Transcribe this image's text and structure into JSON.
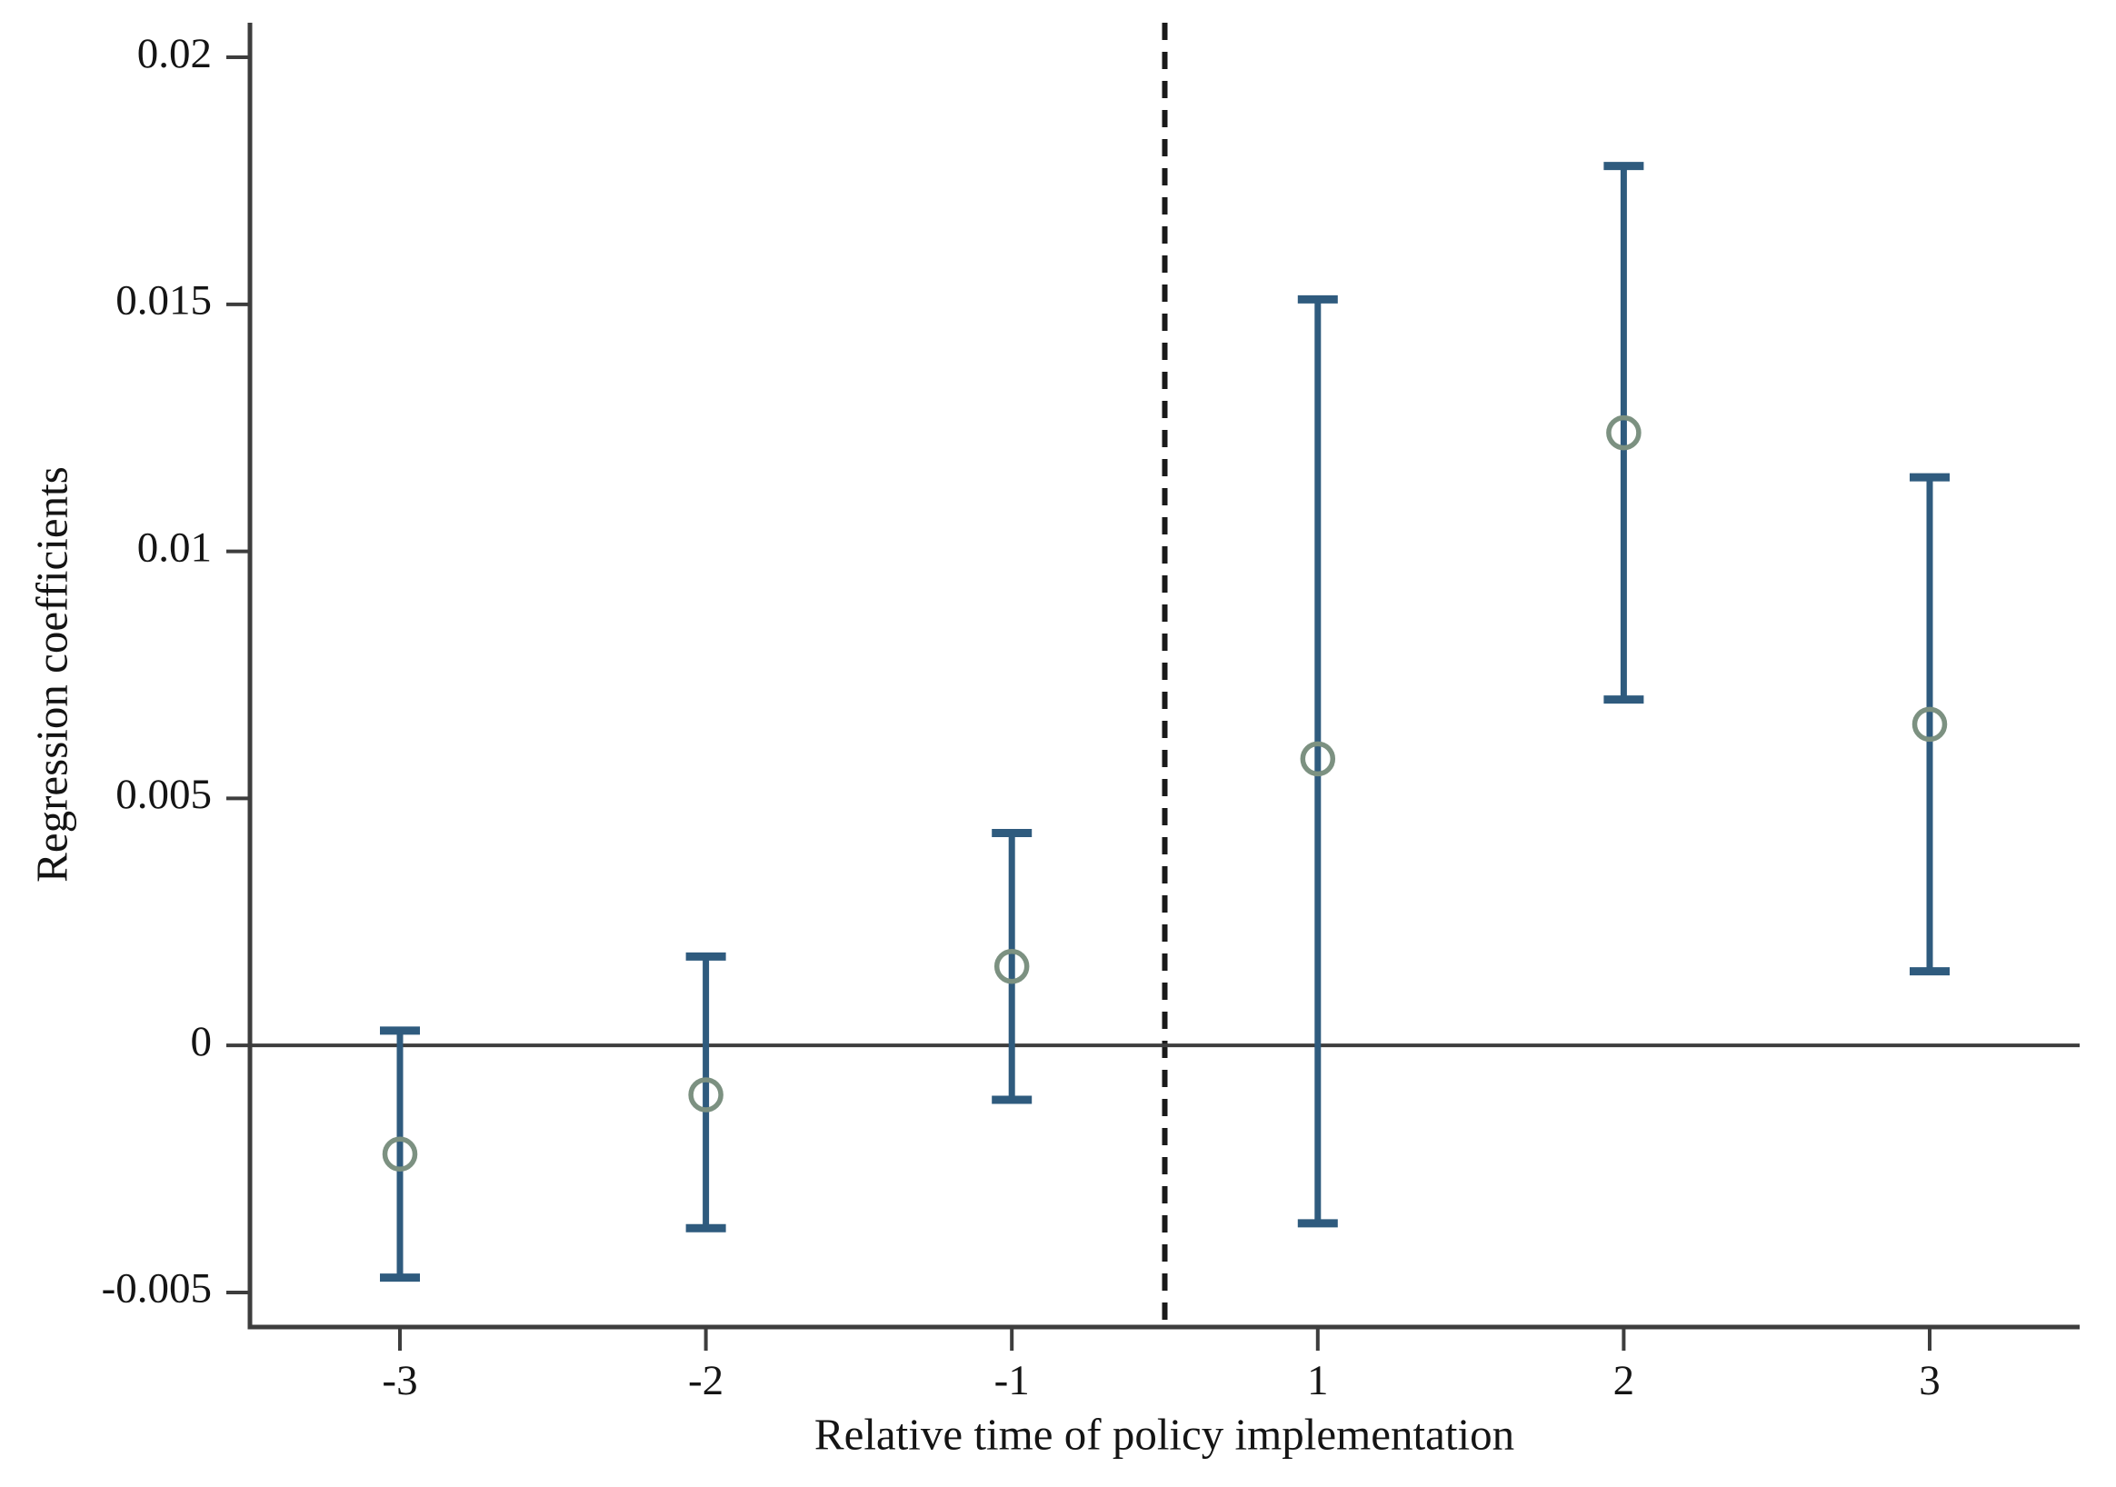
{
  "chart_data": {
    "type": "scatter",
    "subtype": "coefficient-plot-with-error-bars",
    "title": "",
    "xlabel": "Relative time of policy implementation",
    "ylabel": "Regression coefficients",
    "x_tick_labels": [
      "-3",
      "-2",
      "-1",
      "1",
      "2",
      "3"
    ],
    "y_tick_labels": [
      "0.02",
      "0.015",
      "0.01",
      "0.005",
      "0",
      "-0.005"
    ],
    "y_tick_values": [
      0.02,
      0.015,
      0.01,
      0.005,
      0,
      -0.005
    ],
    "ylim": [
      -0.0057,
      0.0207
    ],
    "categories": [
      -3,
      -2,
      -1,
      1,
      2,
      3
    ],
    "series": [
      {
        "name": "Regression coefficients",
        "points": [
          {
            "x": -3,
            "coef": -0.0022,
            "ci_low": -0.0047,
            "ci_high": 0.0003
          },
          {
            "x": -2,
            "coef": -0.001,
            "ci_low": -0.0037,
            "ci_high": 0.0018
          },
          {
            "x": -1,
            "coef": 0.0016,
            "ci_low": -0.0011,
            "ci_high": 0.0043
          },
          {
            "x": 1,
            "coef": 0.0058,
            "ci_low": -0.0036,
            "ci_high": 0.0151
          },
          {
            "x": 2,
            "coef": 0.0124,
            "ci_low": 0.007,
            "ci_high": 0.0178
          },
          {
            "x": 3,
            "coef": 0.0065,
            "ci_low": 0.0015,
            "ci_high": 0.0115
          }
        ]
      }
    ],
    "reference_lines": {
      "zero_line_y": 0,
      "policy_line_x": 0,
      "policy_line_style": "dashed"
    },
    "legend": "none",
    "grid": "off",
    "colors": {
      "error_bar": "#2f5b7e",
      "marker": "#7c9181",
      "axis": "#3d3d3d",
      "zero_line": "#3d3d3d",
      "dashed_line": "#1a1a1a",
      "text": "#141414",
      "background": "#ffffff"
    }
  }
}
